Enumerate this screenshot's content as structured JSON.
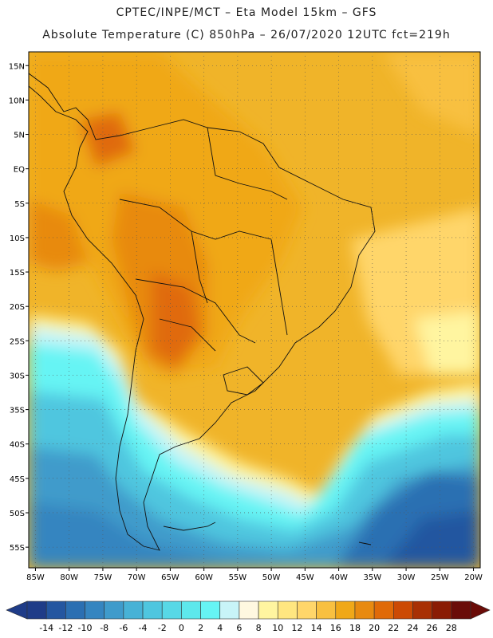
{
  "header": {
    "line1": "CPTEC/INPE/MCT –  Eta Model 15km – GFS",
    "line2": "Absolute Temperature (C) 850hPa – 26/07/2020 12UTC fct=219h"
  },
  "map": {
    "lat_labels": [
      "15N",
      "10N",
      "5N",
      "EQ",
      "5S",
      "10S",
      "15S",
      "20S",
      "25S",
      "30S",
      "35S",
      "40S",
      "45S",
      "50S",
      "55S"
    ],
    "lon_labels": [
      "85W",
      "80W",
      "75W",
      "70W",
      "65W",
      "60W",
      "55W",
      "50W",
      "45W",
      "40W",
      "35W",
      "30W",
      "25W",
      "20W"
    ],
    "lat_values": [
      15,
      10,
      5,
      0,
      -5,
      -10,
      -15,
      -20,
      -25,
      -30,
      -35,
      -40,
      -45,
      -50,
      -55
    ],
    "lon_values": [
      -85,
      -80,
      -75,
      -70,
      -65,
      -60,
      -55,
      -50,
      -45,
      -40,
      -35,
      -30,
      -25,
      -20
    ],
    "lon_range": [
      -86,
      -19
    ],
    "lat_range": [
      -58,
      17
    ]
  },
  "legend": {
    "labels": [
      "-14",
      "-12",
      "-10",
      "-8",
      "-6",
      "-4",
      "-2",
      "0",
      "2",
      "4",
      "6",
      "8",
      "10",
      "12",
      "14",
      "16",
      "18",
      "20",
      "22",
      "24",
      "26",
      "28"
    ],
    "colors": [
      "#1f3c88",
      "#2456a0",
      "#2b6fb2",
      "#3585c0",
      "#3f9bcb",
      "#47b2d6",
      "#4fc6df",
      "#57d8e6",
      "#5de8ec",
      "#66f4f4",
      "#c8f4f8",
      "#fff8e0",
      "#fff5a0",
      "#ffe680",
      "#ffd66a",
      "#f8c040",
      "#f0a818",
      "#e88a10",
      "#e06a08",
      "#cc4a04",
      "#a83004",
      "#8a1c04",
      "#6a0c08"
    ]
  }
}
